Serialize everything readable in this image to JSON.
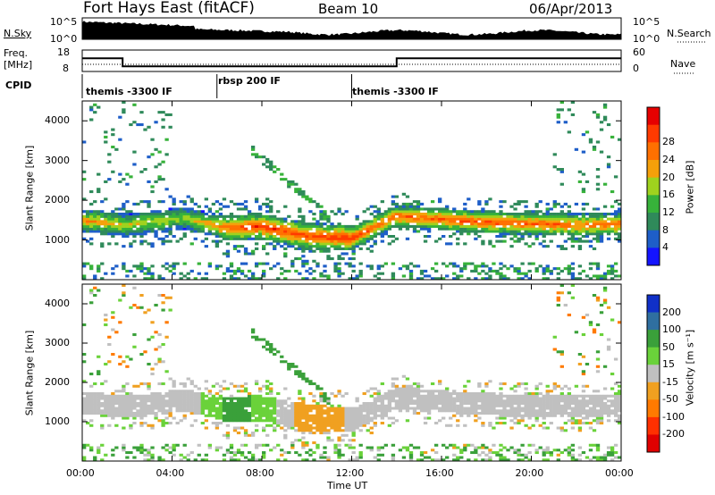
{
  "header": {
    "title": "Fort Hays East (fitACF)",
    "beam": "Beam 10",
    "date": "06/Apr/2013"
  },
  "nsky_panel": {
    "left_label": "N.Sky",
    "right_label": "N.Search",
    "left_ticks": [
      "10^5",
      "10^0"
    ],
    "right_ticks": [
      "10^5",
      "10^0"
    ]
  },
  "freq_panel": {
    "left_label_1": "Freq.",
    "left_label_2": "[MHz]",
    "right_label": "Nave",
    "left_ticks": [
      "18",
      "8"
    ],
    "right_ticks": [
      "60",
      "0"
    ]
  },
  "cpid": {
    "label": "CPID",
    "segments": [
      "themis -3300 IF",
      "rbsp 200 IF",
      "themis -3300 IF"
    ]
  },
  "x_axis": {
    "label": "Time UT",
    "ticks": [
      "00:00",
      "04:00",
      "08:00",
      "12:00",
      "16:00",
      "20:00",
      "00:00"
    ]
  },
  "y_axis": {
    "label": "Slant Range [km]",
    "ticks": [
      "1000",
      "2000",
      "3000",
      "4000"
    ]
  },
  "power_colorbar": {
    "label": "Power [dB]",
    "ticks": [
      "4",
      "8",
      "12",
      "16",
      "20",
      "24",
      "28"
    ],
    "colors": [
      "#1414ff",
      "#1e5ec8",
      "#2f8a5a",
      "#37b23a",
      "#9fd21e",
      "#f5a00a",
      "#ff7000",
      "#ff3a00",
      "#e60000"
    ]
  },
  "velocity_colorbar": {
    "label": "Velocity [m s⁻¹]",
    "ticks": [
      "200",
      "100",
      "50",
      "15",
      "-15",
      "-50",
      "-100",
      "-200"
    ],
    "colors": [
      "#1030c8",
      "#2f6fa0",
      "#3aa03a",
      "#6ad23a",
      "#c0c0c0",
      "#f0a020",
      "#ff7a00",
      "#ff3000",
      "#e00000"
    ]
  },
  "chart_data": {
    "type": "heatmap",
    "title": "Fort Hays East (fitACF)",
    "xlabel": "Time UT",
    "ylabel": "Slant Range [km]",
    "x_range_hours": [
      0,
      24
    ],
    "ylim": [
      0,
      4500
    ],
    "frequency_steps": [
      {
        "start": 0.0,
        "end": 1.8,
        "freq": 14.5
      },
      {
        "start": 1.8,
        "end": 14.0,
        "freq": 10.5
      },
      {
        "start": 14.0,
        "end": 24.0,
        "freq": 14.5
      }
    ],
    "cpid_segments": [
      {
        "start": 0.0,
        "end": 6.0,
        "name": "themis -3300 IF"
      },
      {
        "start": 6.0,
        "end": 12.0,
        "name": "rbsp 200 IF"
      },
      {
        "start": 12.0,
        "end": 24.0,
        "name": "themis -3300 IF"
      }
    ],
    "main_echo_band": [
      {
        "t": 0.0,
        "center": 1500,
        "power": 22,
        "velocity": -5
      },
      {
        "t": 2.0,
        "center": 1380,
        "power": 18,
        "velocity": -5
      },
      {
        "t": 4.5,
        "center": 1550,
        "power": 16,
        "velocity": -10
      },
      {
        "t": 6.5,
        "center": 1300,
        "power": 24,
        "velocity": 60
      },
      {
        "t": 8.0,
        "center": 1350,
        "power": 28,
        "velocity": 45
      },
      {
        "t": 10.0,
        "center": 1100,
        "power": 26,
        "velocity": -40
      },
      {
        "t": 12.0,
        "center": 1050,
        "power": 28,
        "velocity": -10
      },
      {
        "t": 14.0,
        "center": 1600,
        "power": 24,
        "velocity": -5
      },
      {
        "t": 18.0,
        "center": 1450,
        "power": 26,
        "velocity": -5
      },
      {
        "t": 22.0,
        "center": 1380,
        "power": 24,
        "velocity": -5
      },
      {
        "t": 24.0,
        "center": 1400,
        "power": 24,
        "velocity": -5
      }
    ]
  }
}
